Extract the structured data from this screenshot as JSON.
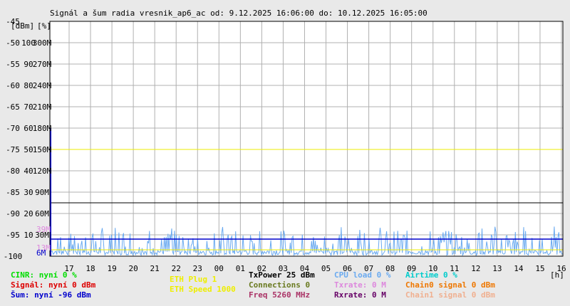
{
  "chart_data": {
    "type": "line",
    "title": "Signál a šum radia vresnik_ap6_ac od: 9.12.2025 16:06:00 do: 10.12.2025 16:05:00",
    "unit_labels": [
      "[dBm]",
      "[%]"
    ],
    "x_unit": "[h]",
    "x_ticks": [
      "17",
      "18",
      "19",
      "20",
      "21",
      "22",
      "23",
      "00",
      "01",
      "02",
      "03",
      "04",
      "05",
      "06",
      "07",
      "08",
      "09",
      "10",
      "11",
      "12",
      "13",
      "14",
      "15",
      "16"
    ],
    "y_axes": {
      "dbm": {
        "ticks": [
          "-45",
          "-50",
          "-55",
          "-60",
          "-65",
          "-70",
          "-75",
          "-80",
          "-85",
          "-90",
          "-95",
          "-100"
        ],
        "range": [
          -100,
          -45
        ]
      },
      "percent": {
        "ticks": [
          "100",
          "90",
          "80",
          "70",
          "60",
          "50",
          "40",
          "30",
          "20",
          "10"
        ],
        "range": [
          0,
          110
        ]
      },
      "rate": {
        "ticks": [
          "300M",
          "270M",
          "240M",
          "210M",
          "180M",
          "150M",
          "120M",
          "90M",
          "60M",
          "30M"
        ],
        "range": [
          0,
          330
        ]
      }
    },
    "extra_labels": {
      "pink_top": "39M",
      "pink_bottom": "13M",
      "blue_bottom": "6M"
    },
    "reference_lines": {
      "yellow_dbm": -75,
      "black_dbm": -87.5,
      "yellow_low_dbm": -98.5
    },
    "series": [
      {
        "name": "Šum",
        "color": "#0000cc",
        "constant_dbm": -96,
        "spike_start_dbm": -70
      },
      {
        "name": "CPU load",
        "color": "#6aaaf0",
        "unit": "%",
        "style": "noisy band 0–12"
      }
    ],
    "grid": true
  },
  "legend": {
    "col1": [
      {
        "text": "CINR: nyní 0 %",
        "color": "#00dd00"
      },
      {
        "text": "Signál: nyní 0 dBm",
        "color": "#dd0000"
      },
      {
        "text": "Šum: nyní -96 dBm",
        "color": "#0000cc"
      }
    ],
    "col2": [
      {
        "text": "ETH Plug 1",
        "color": "#eeee00"
      },
      {
        "text": "ETH Speed 1000",
        "color": "#eeee00"
      }
    ],
    "col3": [
      {
        "text": "TxPower 25 dBm",
        "color": "#000000"
      },
      {
        "text": "Connections 0",
        "color": "#6a7a20"
      },
      {
        "text": "Freq 5260 MHz",
        "color": "#aa3366"
      }
    ],
    "col4": [
      {
        "text": "CPU load 0 %",
        "color": "#6aaaf0"
      },
      {
        "text": "Txrate: 0 M",
        "color": "#dd88dd"
      },
      {
        "text": "Rxrate: 0 M",
        "color": "#660066"
      }
    ],
    "col5": [
      {
        "text": "Airtime 0 %",
        "color": "#00cccc"
      },
      {
        "text": "Chain0 signal 0 dBm",
        "color": "#ee7700"
      },
      {
        "text": "Chain1 signal 0 dBm",
        "color": "#f0b090"
      }
    ]
  }
}
